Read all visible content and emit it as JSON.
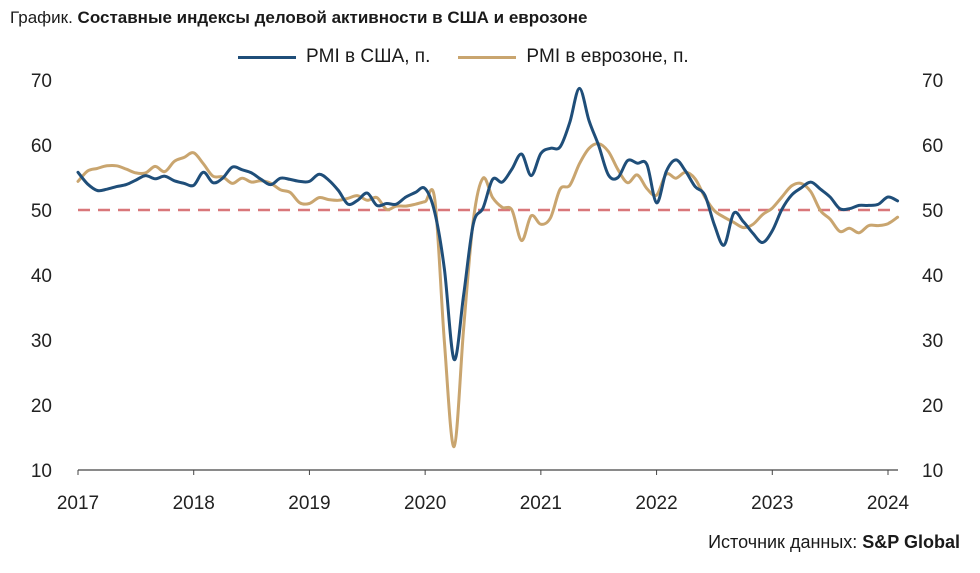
{
  "header": {
    "prefix": "График.",
    "title": "Составные индексы деловой активности в США и еврозоне"
  },
  "source": {
    "label": "Источник данных:",
    "value": "S&P Global"
  },
  "colors": {
    "us": "#1f4e79",
    "ez": "#c9a56f",
    "reference": "#d9777a",
    "axis": "#444444"
  },
  "chart_data": {
    "type": "line",
    "title": "Составные индексы деловой активности в США и еврозоне",
    "xlabel": "",
    "ylabel": "",
    "ylim": [
      10,
      70
    ],
    "xlim": [
      "2017-01",
      "2024-03"
    ],
    "yticks": [
      10,
      20,
      30,
      40,
      50,
      60,
      70
    ],
    "xticks": [
      "2017",
      "2018",
      "2019",
      "2020",
      "2021",
      "2022",
      "2023",
      "2024"
    ],
    "legend_position": "top-center",
    "grid": false,
    "dual_y_axis_labels": true,
    "reference_line": {
      "y": 50,
      "style": "dashed"
    },
    "series": [
      {
        "name": "PMI в США, п.",
        "color": "#1f4e79",
        "points": [
          [
            "2017-01",
            55.8
          ],
          [
            "2017-02",
            54.0
          ],
          [
            "2017-03",
            53.0
          ],
          [
            "2017-04",
            53.2
          ],
          [
            "2017-05",
            53.6
          ],
          [
            "2017-06",
            53.9
          ],
          [
            "2017-07",
            54.6
          ],
          [
            "2017-08",
            55.3
          ],
          [
            "2017-09",
            54.8
          ],
          [
            "2017-10",
            55.2
          ],
          [
            "2017-11",
            54.5
          ],
          [
            "2017-12",
            54.1
          ],
          [
            "2018-01",
            53.8
          ],
          [
            "2018-02",
            55.8
          ],
          [
            "2018-03",
            54.2
          ],
          [
            "2018-04",
            54.9
          ],
          [
            "2018-05",
            56.6
          ],
          [
            "2018-06",
            56.2
          ],
          [
            "2018-07",
            55.7
          ],
          [
            "2018-08",
            54.7
          ],
          [
            "2018-09",
            53.9
          ],
          [
            "2018-10",
            54.9
          ],
          [
            "2018-11",
            54.7
          ],
          [
            "2018-12",
            54.4
          ],
          [
            "2019-01",
            54.4
          ],
          [
            "2019-02",
            55.5
          ],
          [
            "2019-03",
            54.6
          ],
          [
            "2019-04",
            53.0
          ],
          [
            "2019-05",
            50.9
          ],
          [
            "2019-06",
            51.5
          ],
          [
            "2019-07",
            52.6
          ],
          [
            "2019-08",
            50.7
          ],
          [
            "2019-09",
            51.0
          ],
          [
            "2019-10",
            50.9
          ],
          [
            "2019-11",
            52.0
          ],
          [
            "2019-12",
            52.7
          ],
          [
            "2020-01",
            53.3
          ],
          [
            "2020-02",
            49.6
          ],
          [
            "2020-03",
            40.9
          ],
          [
            "2020-04",
            27.0
          ],
          [
            "2020-05",
            37.0
          ],
          [
            "2020-06",
            47.9
          ],
          [
            "2020-07",
            50.3
          ],
          [
            "2020-08",
            54.7
          ],
          [
            "2020-09",
            54.3
          ],
          [
            "2020-10",
            56.3
          ],
          [
            "2020-11",
            58.6
          ],
          [
            "2020-12",
            55.3
          ],
          [
            "2021-01",
            58.7
          ],
          [
            "2021-02",
            59.5
          ],
          [
            "2021-03",
            59.7
          ],
          [
            "2021-04",
            63.5
          ],
          [
            "2021-05",
            68.7
          ],
          [
            "2021-06",
            63.7
          ],
          [
            "2021-07",
            59.9
          ],
          [
            "2021-08",
            55.4
          ],
          [
            "2021-09",
            55.0
          ],
          [
            "2021-10",
            57.6
          ],
          [
            "2021-11",
            57.2
          ],
          [
            "2021-12",
            57.0
          ],
          [
            "2022-01",
            51.1
          ],
          [
            "2022-02",
            55.9
          ],
          [
            "2022-03",
            57.7
          ],
          [
            "2022-04",
            56.0
          ],
          [
            "2022-05",
            53.6
          ],
          [
            "2022-06",
            52.3
          ],
          [
            "2022-07",
            47.7
          ],
          [
            "2022-08",
            44.6
          ],
          [
            "2022-09",
            49.5
          ],
          [
            "2022-10",
            48.2
          ],
          [
            "2022-11",
            46.4
          ],
          [
            "2022-12",
            45.0
          ],
          [
            "2023-01",
            46.8
          ],
          [
            "2023-02",
            50.1
          ],
          [
            "2023-03",
            52.3
          ],
          [
            "2023-04",
            53.4
          ],
          [
            "2023-05",
            54.3
          ],
          [
            "2023-06",
            53.2
          ],
          [
            "2023-07",
            52.0
          ],
          [
            "2023-08",
            50.2
          ],
          [
            "2023-09",
            50.2
          ],
          [
            "2023-10",
            50.7
          ],
          [
            "2023-11",
            50.7
          ],
          [
            "2023-12",
            50.9
          ],
          [
            "2024-01",
            52.0
          ],
          [
            "2024-02",
            51.4
          ]
        ]
      },
      {
        "name": "PMI в еврозоне, п.",
        "color": "#c9a56f",
        "points": [
          [
            "2017-01",
            54.4
          ],
          [
            "2017-02",
            56.0
          ],
          [
            "2017-03",
            56.4
          ],
          [
            "2017-04",
            56.8
          ],
          [
            "2017-05",
            56.8
          ],
          [
            "2017-06",
            56.3
          ],
          [
            "2017-07",
            55.7
          ],
          [
            "2017-08",
            55.7
          ],
          [
            "2017-09",
            56.7
          ],
          [
            "2017-10",
            55.9
          ],
          [
            "2017-11",
            57.5
          ],
          [
            "2017-12",
            58.1
          ],
          [
            "2018-01",
            58.8
          ],
          [
            "2018-02",
            57.1
          ],
          [
            "2018-03",
            55.2
          ],
          [
            "2018-04",
            55.1
          ],
          [
            "2018-05",
            54.1
          ],
          [
            "2018-06",
            54.9
          ],
          [
            "2018-07",
            54.3
          ],
          [
            "2018-08",
            54.5
          ],
          [
            "2018-09",
            54.1
          ],
          [
            "2018-10",
            53.1
          ],
          [
            "2018-11",
            52.7
          ],
          [
            "2018-12",
            51.1
          ],
          [
            "2019-01",
            51.0
          ],
          [
            "2019-02",
            51.9
          ],
          [
            "2019-03",
            51.6
          ],
          [
            "2019-04",
            51.5
          ],
          [
            "2019-05",
            51.8
          ],
          [
            "2019-06",
            52.2
          ],
          [
            "2019-07",
            51.5
          ],
          [
            "2019-08",
            51.9
          ],
          [
            "2019-09",
            50.1
          ],
          [
            "2019-10",
            50.6
          ],
          [
            "2019-11",
            50.6
          ],
          [
            "2019-12",
            50.9
          ],
          [
            "2020-01",
            51.3
          ],
          [
            "2020-02",
            51.6
          ],
          [
            "2020-03",
            29.7
          ],
          [
            "2020-04",
            13.6
          ],
          [
            "2020-05",
            31.9
          ],
          [
            "2020-06",
            48.5
          ],
          [
            "2020-07",
            54.9
          ],
          [
            "2020-08",
            51.9
          ],
          [
            "2020-09",
            50.4
          ],
          [
            "2020-10",
            50.0
          ],
          [
            "2020-11",
            45.3
          ],
          [
            "2020-12",
            49.1
          ],
          [
            "2021-01",
            47.8
          ],
          [
            "2021-02",
            48.8
          ],
          [
            "2021-03",
            53.2
          ],
          [
            "2021-04",
            53.8
          ],
          [
            "2021-05",
            57.1
          ],
          [
            "2021-06",
            59.5
          ],
          [
            "2021-07",
            60.2
          ],
          [
            "2021-08",
            59.0
          ],
          [
            "2021-09",
            56.2
          ],
          [
            "2021-10",
            54.2
          ],
          [
            "2021-11",
            55.4
          ],
          [
            "2021-12",
            53.3
          ],
          [
            "2022-01",
            52.3
          ],
          [
            "2022-02",
            55.5
          ],
          [
            "2022-03",
            54.9
          ],
          [
            "2022-04",
            55.8
          ],
          [
            "2022-05",
            54.8
          ],
          [
            "2022-06",
            52.0
          ],
          [
            "2022-07",
            49.9
          ],
          [
            "2022-08",
            48.9
          ],
          [
            "2022-09",
            48.1
          ],
          [
            "2022-10",
            47.3
          ],
          [
            "2022-11",
            47.8
          ],
          [
            "2022-12",
            49.3
          ],
          [
            "2023-01",
            50.3
          ],
          [
            "2023-02",
            52.0
          ],
          [
            "2023-03",
            53.7
          ],
          [
            "2023-04",
            54.1
          ],
          [
            "2023-05",
            52.8
          ],
          [
            "2023-06",
            49.9
          ],
          [
            "2023-07",
            48.6
          ],
          [
            "2023-08",
            46.7
          ],
          [
            "2023-09",
            47.2
          ],
          [
            "2023-10",
            46.5
          ],
          [
            "2023-11",
            47.6
          ],
          [
            "2023-12",
            47.6
          ],
          [
            "2024-01",
            47.9
          ],
          [
            "2024-02",
            48.9
          ]
        ]
      }
    ]
  }
}
